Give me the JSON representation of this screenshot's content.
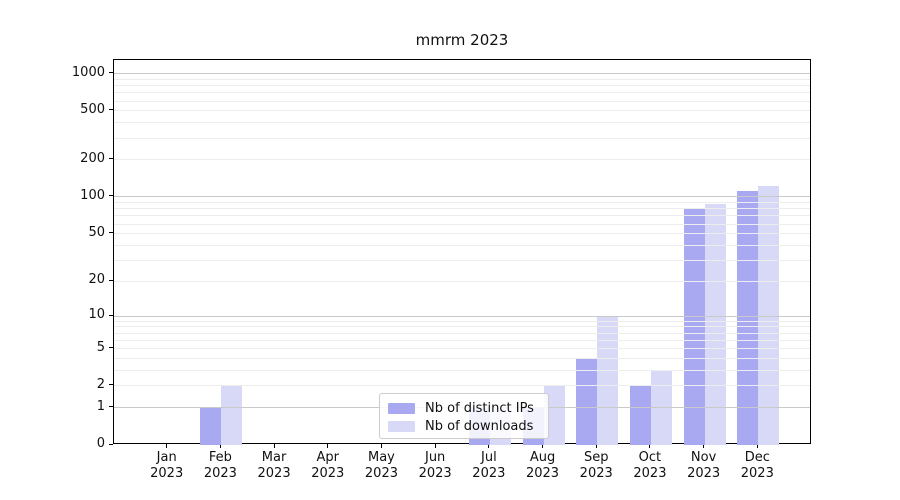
{
  "chart_data": {
    "type": "bar",
    "title": "mmrm 2023",
    "categories": [
      "Jan 2023",
      "Feb 2023",
      "Mar 2023",
      "Apr 2023",
      "May 2023",
      "Jun 2023",
      "Jul 2023",
      "Aug 2023",
      "Sep 2023",
      "Oct 2023",
      "Nov 2023",
      "Dec 2023"
    ],
    "series": [
      {
        "name": "Nb of distinct IPs",
        "color": "#a9a9f2",
        "values": [
          0,
          1,
          0,
          0,
          0,
          0,
          1,
          1,
          4,
          2,
          80,
          112
        ]
      },
      {
        "name": "Nb of downloads",
        "color": "#d8d8f7",
        "values": [
          0,
          2,
          0,
          0,
          0,
          0,
          1,
          2,
          10,
          3,
          87,
          122
        ]
      }
    ],
    "xlabel": "",
    "ylabel": "",
    "yscale": "log1p",
    "ylim": [
      0,
      1290
    ],
    "yticks": [
      0,
      1,
      2,
      5,
      10,
      20,
      50,
      100,
      200,
      500,
      1000
    ],
    "major_gridlines": [
      1,
      10,
      100,
      1000
    ],
    "minor_gridlines": [
      2,
      3,
      4,
      5,
      6,
      7,
      8,
      9,
      20,
      30,
      40,
      50,
      60,
      70,
      80,
      90,
      200,
      300,
      400,
      500,
      600,
      700,
      800,
      900
    ],
    "grid": true,
    "legend_position": "lower center"
  },
  "colors": {
    "major_grid": "#c9c9c9",
    "minor_grid": "#ededed",
    "axis": "#000000",
    "text": "#111111",
    "legend_border": "#cccccc"
  }
}
